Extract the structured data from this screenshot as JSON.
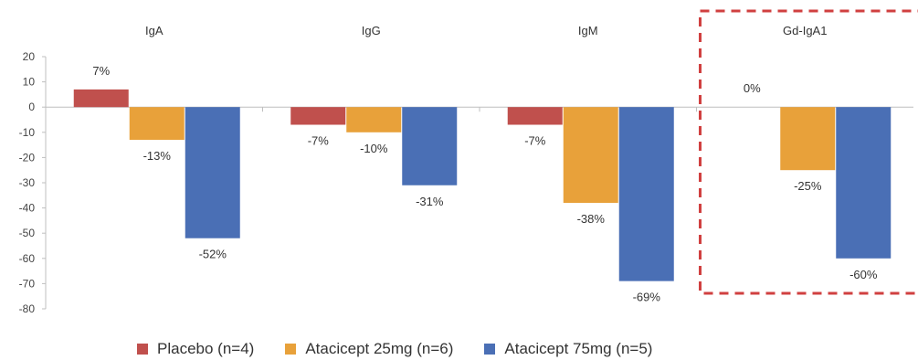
{
  "chart_data": {
    "type": "bar",
    "categories": [
      "IgA",
      "IgG",
      "IgM",
      "Gd-IgA1"
    ],
    "series": [
      {
        "name": "Placebo (n=4)",
        "color": "#c0504d",
        "values": [
          7,
          -7,
          -7,
          0
        ],
        "labels": [
          "7%",
          "-7%",
          "-7%",
          "0%"
        ]
      },
      {
        "name": "Atacicept 25mg (n=6)",
        "color": "#e8a13a",
        "values": [
          -13,
          -10,
          -38,
          -25
        ],
        "labels": [
          "-13%",
          "-10%",
          "-38%",
          "-25%"
        ]
      },
      {
        "name": "Atacicept 75mg (n=5)",
        "color": "#4a6fb5",
        "values": [
          -52,
          -31,
          -69,
          -60
        ],
        "labels": [
          "-52%",
          "-31%",
          "-69%",
          "-60%"
        ]
      }
    ],
    "ylim": [
      -80,
      20
    ],
    "yticks": [
      20,
      10,
      0,
      -10,
      -20,
      -30,
      -40,
      -50,
      -60,
      -70,
      -80
    ],
    "xlabel": "",
    "ylabel": "",
    "legend_position": "bottom",
    "highlight_category": "Gd-IgA1",
    "highlight_style": "red dashed box"
  }
}
